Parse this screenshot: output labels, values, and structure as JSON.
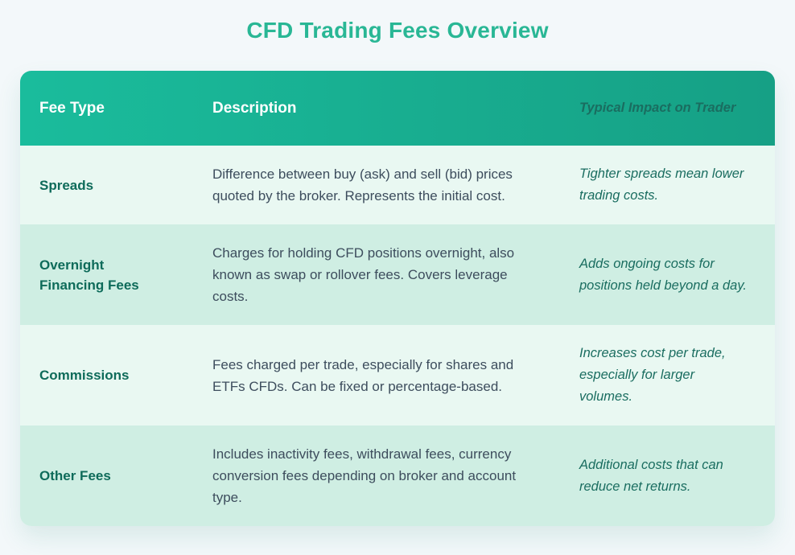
{
  "page": {
    "title": "CFD Trading Fees Overview"
  },
  "table": {
    "headers": {
      "fee_type": "Fee Type",
      "description": "Description",
      "impact": "Typical Impact on Trader"
    },
    "rows": [
      {
        "fee_type": "Spreads",
        "description": "Difference between buy (ask) and sell (bid) prices quoted by the broker. Represents the initial cost.",
        "impact": "Tighter spreads mean lower trading costs."
      },
      {
        "fee_type": "Overnight Financing Fees",
        "description": "Charges for holding CFD positions overnight, also known as swap or rollover fees. Covers leverage costs.",
        "impact": "Adds ongoing costs for positions held beyond a day."
      },
      {
        "fee_type": "Commissions",
        "description": "Fees charged per trade, especially for shares and ETFs CFDs. Can be fixed or percentage-based.",
        "impact": "Increases cost per trade, especially for larger volumes."
      },
      {
        "fee_type": "Other Fees",
        "description": "Includes inactivity fees, withdrawal fees, currency conversion fees depending on broker and account type.",
        "impact": "Additional costs that can reduce net returns."
      }
    ],
    "colors": {
      "page_bg": "#f3f8fa",
      "title": "#29b795",
      "header_gradient_start": "#1abc9c",
      "header_gradient_end": "#16a085",
      "row_light": "#e9f8f2",
      "row_mint": "#cfeee3",
      "fee_type_text": "#0e6b5a",
      "description_text": "#3d4d5d",
      "impact_text": "#1a6d60"
    }
  }
}
